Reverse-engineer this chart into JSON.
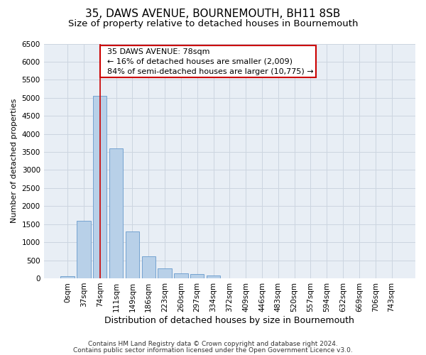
{
  "title": "35, DAWS AVENUE, BOURNEMOUTH, BH11 8SB",
  "subtitle": "Size of property relative to detached houses in Bournemouth",
  "xlabel": "Distribution of detached houses by size in Bournemouth",
  "ylabel": "Number of detached properties",
  "categories": [
    "0sqm",
    "37sqm",
    "74sqm",
    "111sqm",
    "149sqm",
    "186sqm",
    "223sqm",
    "260sqm",
    "297sqm",
    "334sqm",
    "372sqm",
    "409sqm",
    "446sqm",
    "483sqm",
    "520sqm",
    "557sqm",
    "594sqm",
    "632sqm",
    "669sqm",
    "706sqm",
    "743sqm"
  ],
  "values": [
    50,
    1600,
    5050,
    3600,
    1300,
    600,
    270,
    130,
    110,
    75,
    0,
    0,
    0,
    0,
    0,
    0,
    0,
    0,
    0,
    0,
    0
  ],
  "bar_color": "#b8d0e8",
  "bar_edgecolor": "#6699cc",
  "vline_x_index": 2,
  "vline_color": "#cc0000",
  "annotation_text_line1": "  35 DAWS AVENUE: 78sqm",
  "annotation_text_line2": "  ← 16% of detached houses are smaller (2,009)",
  "annotation_text_line3": "  84% of semi-detached houses are larger (10,775) →",
  "annotation_box_color": "#ffffff",
  "annotation_box_edgecolor": "#cc0000",
  "ylim": [
    0,
    6500
  ],
  "yticks": [
    0,
    500,
    1000,
    1500,
    2000,
    2500,
    3000,
    3500,
    4000,
    4500,
    5000,
    5500,
    6000,
    6500
  ],
  "grid_color": "#ccd5e0",
  "background_color": "#e8eef5",
  "footer1": "Contains HM Land Registry data © Crown copyright and database right 2024.",
  "footer2": "Contains public sector information licensed under the Open Government Licence v3.0.",
  "title_fontsize": 11,
  "subtitle_fontsize": 9.5,
  "xlabel_fontsize": 9,
  "ylabel_fontsize": 8,
  "tick_fontsize": 7.5,
  "annotation_fontsize": 8,
  "footer_fontsize": 6.5
}
